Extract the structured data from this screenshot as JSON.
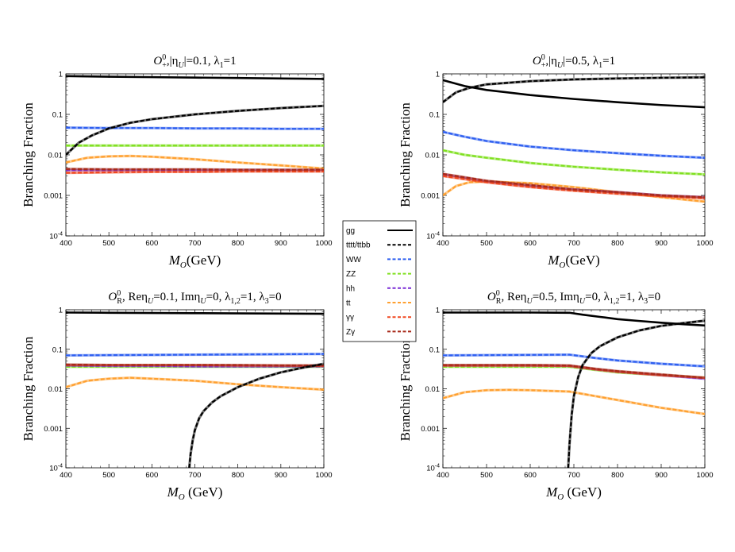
{
  "legend": {
    "entries": [
      {
        "label": "gg",
        "color": "#000000",
        "dash": "solid"
      },
      {
        "label": "tttt/ttbb",
        "color": "#000000",
        "dash": "dashed"
      },
      {
        "label": "WW",
        "color": "#2e5ff0",
        "dash": "dashed"
      },
      {
        "label": "ZZ",
        "color": "#80e020",
        "dash": "dashed"
      },
      {
        "label": "hh",
        "color": "#7a2bd6",
        "dash": "dashed"
      },
      {
        "label": "tt",
        "color": "#ffa030",
        "dash": "dashed"
      },
      {
        "label": "γγ",
        "color": "#f04820",
        "dash": "dashed"
      },
      {
        "label": "Zγ",
        "color": "#a82a1a",
        "dash": "dashed"
      }
    ]
  },
  "chart_data": [
    {
      "type": "line",
      "title": "O+0, |ηU|=0.1, λ1=1",
      "title_parts": {
        "O": "O",
        "sup": "0",
        "sub": "+",
        "rest1": ",|η",
        "etasub": "U",
        "rest2": "|=0.1, λ",
        "lsub": "1",
        "rest3": "=1"
      },
      "xlabel": "MO(GeV)",
      "xlabel_main": "M",
      "xlabel_sub": "O",
      "xlabel_rest": "(GeV)",
      "ylabel": "Branching Fraction",
      "yscale": "log",
      "xlim": [
        400,
        1000
      ],
      "ylim": [
        0.0001,
        1
      ],
      "x_ticks": [
        "400",
        "500",
        "600",
        "700",
        "800",
        "900",
        "1000"
      ],
      "y_ticks": [
        "1",
        "0.1",
        "0.01",
        "0.001",
        "10-4"
      ],
      "series": [
        {
          "name": "gg",
          "x": [
            400,
            500,
            600,
            700,
            800,
            900,
            1000
          ],
          "y": [
            0.88,
            0.85,
            0.83,
            0.81,
            0.79,
            0.77,
            0.75
          ]
        },
        {
          "name": "tttt/ttbb",
          "x": [
            400,
            430,
            460,
            500,
            550,
            600,
            700,
            800,
            900,
            1000
          ],
          "y": [
            0.01,
            0.02,
            0.03,
            0.045,
            0.062,
            0.076,
            0.1,
            0.122,
            0.143,
            0.162
          ]
        },
        {
          "name": "WW",
          "x": [
            400,
            500,
            600,
            700,
            800,
            900,
            1000
          ],
          "y": [
            0.047,
            0.046,
            0.046,
            0.045,
            0.045,
            0.044,
            0.044
          ]
        },
        {
          "name": "ZZ",
          "x": [
            400,
            500,
            600,
            700,
            800,
            900,
            1000
          ],
          "y": [
            0.017,
            0.017,
            0.017,
            0.017,
            0.017,
            0.017,
            0.017
          ]
        },
        {
          "name": "hh",
          "x": [
            400,
            500,
            600,
            700,
            800,
            900,
            1000
          ],
          "y": [
            0.0042,
            0.0042,
            0.0042,
            0.0042,
            0.0042,
            0.0042,
            0.0042
          ]
        },
        {
          "name": "tt",
          "x": [
            400,
            450,
            500,
            550,
            600,
            700,
            800,
            900,
            1000
          ],
          "y": [
            0.0065,
            0.0085,
            0.0092,
            0.0094,
            0.009,
            0.0078,
            0.0065,
            0.0055,
            0.0046
          ]
        },
        {
          "name": "γγ",
          "x": [
            400,
            500,
            600,
            700,
            800,
            900,
            1000
          ],
          "y": [
            0.0036,
            0.0037,
            0.0038,
            0.0038,
            0.0039,
            0.0039,
            0.0039
          ]
        },
        {
          "name": "Zγ",
          "x": [
            400,
            500,
            600,
            700,
            800,
            900,
            1000
          ],
          "y": [
            0.0045,
            0.0044,
            0.0044,
            0.0044,
            0.0043,
            0.0043,
            0.0043
          ]
        }
      ]
    },
    {
      "type": "line",
      "title": "O+0, |ηU|=0.5, λ1=1",
      "title_parts": {
        "O": "O",
        "sup": "0",
        "sub": "+",
        "rest1": ",|η",
        "etasub": "U",
        "rest2": "|=0.5, λ",
        "lsub": "1",
        "rest3": "=1"
      },
      "xlabel": "MO(GeV)",
      "xlabel_main": "M",
      "xlabel_sub": "O",
      "xlabel_rest": "(GeV)",
      "ylabel": "Branching Fraction",
      "yscale": "log",
      "xlim": [
        400,
        1000
      ],
      "ylim": [
        0.0001,
        1
      ],
      "x_ticks": [
        "400",
        "500",
        "600",
        "700",
        "800",
        "900",
        "1000"
      ],
      "y_ticks": [
        "1",
        "0.1",
        "0.01",
        "0.001",
        "10-4"
      ],
      "series": [
        {
          "name": "gg",
          "x": [
            400,
            450,
            500,
            600,
            700,
            800,
            900,
            1000
          ],
          "y": [
            0.7,
            0.5,
            0.4,
            0.3,
            0.24,
            0.2,
            0.17,
            0.15
          ]
        },
        {
          "name": "tttt/ttbb",
          "x": [
            400,
            430,
            460,
            500,
            600,
            700,
            800,
            900,
            1000
          ],
          "y": [
            0.2,
            0.35,
            0.45,
            0.55,
            0.66,
            0.73,
            0.77,
            0.8,
            0.82
          ]
        },
        {
          "name": "WW",
          "x": [
            400,
            450,
            500,
            600,
            700,
            800,
            900,
            1000
          ],
          "y": [
            0.037,
            0.028,
            0.022,
            0.016,
            0.013,
            0.011,
            0.0095,
            0.0085
          ]
        },
        {
          "name": "ZZ",
          "x": [
            400,
            450,
            500,
            600,
            700,
            800,
            900,
            1000
          ],
          "y": [
            0.013,
            0.01,
            0.0085,
            0.0063,
            0.0051,
            0.0043,
            0.0037,
            0.0033
          ]
        },
        {
          "name": "hh",
          "x": [
            400,
            500,
            600,
            700,
            800,
            900,
            1000
          ],
          "y": [
            0.0033,
            0.0022,
            0.0017,
            0.0014,
            0.0012,
            0.001,
            0.0009
          ]
        },
        {
          "name": "tt",
          "x": [
            400,
            430,
            460,
            500,
            550,
            600,
            700,
            800,
            900,
            1000
          ],
          "y": [
            0.001,
            0.0017,
            0.0021,
            0.0022,
            0.0021,
            0.002,
            0.0016,
            0.0012,
            0.0009,
            0.0007
          ]
        },
        {
          "name": "γγ",
          "x": [
            400,
            500,
            600,
            700,
            800,
            900,
            1000
          ],
          "y": [
            0.003,
            0.0021,
            0.0016,
            0.0013,
            0.0011,
            0.00095,
            0.00085
          ]
        },
        {
          "name": "Zγ",
          "x": [
            400,
            500,
            600,
            700,
            800,
            900,
            1000
          ],
          "y": [
            0.0034,
            0.0023,
            0.0018,
            0.0014,
            0.0012,
            0.001,
            0.0009
          ]
        }
      ]
    },
    {
      "type": "line",
      "title": "OR0, ReηU=0.1, ImηU=0, λ1,2=1, λ3=0",
      "title_parts": {
        "O": "O",
        "sup": "0",
        "sub": "R",
        "rest1": ", Reη",
        "etasub": "U",
        "rest2": "=0.1, Imη",
        "etasub2": "U",
        "rest2b": "=0, λ",
        "lsub": "1,2",
        "rest3": "=1, λ",
        "lsub2": "3",
        "rest4": "=0"
      },
      "xlabel": "MO (GeV)",
      "xlabel_main": "M",
      "xlabel_sub": "O",
      "xlabel_rest": " (GeV)",
      "ylabel": "Branching Fraction",
      "yscale": "log",
      "xlim": [
        400,
        1000
      ],
      "ylim": [
        0.0001,
        1
      ],
      "x_ticks": [
        "400",
        "500",
        "600",
        "700",
        "800",
        "900",
        "1000"
      ],
      "y_ticks": [
        "1",
        "0.1",
        "0.01",
        "0.001",
        "10-4"
      ],
      "series": [
        {
          "name": "gg",
          "x": [
            400,
            500,
            600,
            700,
            800,
            900,
            1000
          ],
          "y": [
            0.85,
            0.84,
            0.83,
            0.82,
            0.81,
            0.8,
            0.79
          ]
        },
        {
          "name": "tttt/ttbb",
          "x": [
            687,
            690,
            695,
            700,
            710,
            720,
            740,
            760,
            800,
            850,
            900,
            950,
            1000
          ],
          "y": [
            0.0001,
            0.00022,
            0.0005,
            0.0009,
            0.0018,
            0.0027,
            0.0045,
            0.0065,
            0.011,
            0.018,
            0.026,
            0.034,
            0.043
          ]
        },
        {
          "name": "WW",
          "x": [
            400,
            500,
            600,
            700,
            800,
            900,
            1000
          ],
          "y": [
            0.07,
            0.071,
            0.072,
            0.073,
            0.074,
            0.075,
            0.076
          ]
        },
        {
          "name": "ZZ",
          "x": [
            400,
            500,
            600,
            700,
            800,
            900,
            1000
          ],
          "y": [
            0.036,
            0.036,
            0.036,
            0.036,
            0.036,
            0.036,
            0.036
          ]
        },
        {
          "name": "hh",
          "x": [
            400,
            500,
            600,
            700,
            800,
            900,
            1000
          ],
          "y": [
            0.039,
            0.038,
            0.038,
            0.037,
            0.037,
            0.037,
            0.037
          ]
        },
        {
          "name": "tt",
          "x": [
            400,
            450,
            500,
            550,
            600,
            700,
            800,
            900,
            1000
          ],
          "y": [
            0.011,
            0.016,
            0.018,
            0.019,
            0.018,
            0.016,
            0.013,
            0.011,
            0.0095
          ]
        },
        {
          "name": "γγ",
          "x": [
            400,
            500,
            600,
            700,
            800,
            900,
            1000
          ],
          "y": [
            0.04,
            0.04,
            0.04,
            0.04,
            0.039,
            0.039,
            0.038
          ]
        },
        {
          "name": "Zγ",
          "x": [
            400,
            500,
            600,
            700,
            800,
            900,
            1000
          ],
          "y": [
            0.041,
            0.04,
            0.04,
            0.04,
            0.04,
            0.039,
            0.039
          ]
        }
      ]
    },
    {
      "type": "line",
      "title": "OR0, ReηU=0.5, ImηU=0, λ1,2=1, λ3=0",
      "title_parts": {
        "O": "O",
        "sup": "0",
        "sub": "R",
        "rest1": ", Reη",
        "etasub": "U",
        "rest2": "=0.5, Imη",
        "etasub2": "U",
        "rest2b": "=0, λ",
        "lsub": "1,2",
        "rest3": "=1, λ",
        "lsub2": "3",
        "rest4": "=0"
      },
      "xlabel": "MO (GeV)",
      "xlabel_main": "M",
      "xlabel_sub": "O",
      "xlabel_rest": " (GeV)",
      "ylabel": "Branching Fraction",
      "yscale": "log",
      "xlim": [
        400,
        1000
      ],
      "ylim": [
        0.0001,
        1
      ],
      "x_ticks": [
        "400",
        "500",
        "600",
        "700",
        "800",
        "900",
        "1000"
      ],
      "y_ticks": [
        "1",
        "0.1",
        "0.01",
        "0.001",
        "10-4"
      ],
      "series": [
        {
          "name": "gg",
          "x": [
            400,
            500,
            600,
            690,
            720,
            760,
            800,
            850,
            900,
            950,
            1000
          ],
          "y": [
            0.85,
            0.85,
            0.85,
            0.84,
            0.75,
            0.66,
            0.58,
            0.52,
            0.47,
            0.43,
            0.4
          ]
        },
        {
          "name": "tttt/ttbb",
          "x": [
            687,
            690,
            695,
            700,
            710,
            720,
            740,
            760,
            800,
            850,
            900,
            950,
            1000
          ],
          "y": [
            0.0001,
            0.0004,
            0.0022,
            0.0065,
            0.02,
            0.04,
            0.08,
            0.12,
            0.2,
            0.3,
            0.39,
            0.46,
            0.53
          ]
        },
        {
          "name": "WW",
          "x": [
            400,
            500,
            600,
            690,
            750,
            800,
            900,
            1000
          ],
          "y": [
            0.07,
            0.071,
            0.072,
            0.073,
            0.06,
            0.052,
            0.043,
            0.037
          ]
        },
        {
          "name": "ZZ",
          "x": [
            400,
            500,
            600,
            690,
            750,
            800,
            900,
            1000
          ],
          "y": [
            0.036,
            0.036,
            0.036,
            0.036,
            0.03,
            0.026,
            0.022,
            0.019
          ]
        },
        {
          "name": "hh",
          "x": [
            400,
            500,
            600,
            690,
            750,
            800,
            900,
            1000
          ],
          "y": [
            0.039,
            0.039,
            0.039,
            0.038,
            0.031,
            0.027,
            0.022,
            0.018
          ]
        },
        {
          "name": "tt",
          "x": [
            400,
            450,
            500,
            550,
            600,
            690,
            750,
            800,
            900,
            1000
          ],
          "y": [
            0.0058,
            0.0082,
            0.0092,
            0.0094,
            0.0092,
            0.0085,
            0.0065,
            0.0052,
            0.0033,
            0.0023
          ]
        },
        {
          "name": "γγ",
          "x": [
            400,
            500,
            600,
            690,
            750,
            800,
            900,
            1000
          ],
          "y": [
            0.039,
            0.039,
            0.039,
            0.038,
            0.031,
            0.027,
            0.022,
            0.019
          ]
        },
        {
          "name": "Zγ",
          "x": [
            400,
            500,
            600,
            690,
            750,
            800,
            900,
            1000
          ],
          "y": [
            0.04,
            0.04,
            0.04,
            0.039,
            0.032,
            0.028,
            0.023,
            0.019
          ]
        }
      ]
    }
  ]
}
